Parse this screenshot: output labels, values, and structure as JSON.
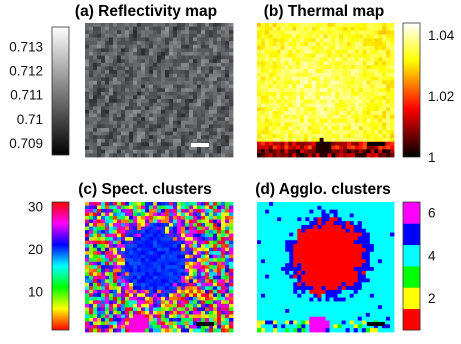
{
  "chart_data": [
    {
      "type": "heatmap",
      "title": "(a) Reflectivity map",
      "colormap": "gray",
      "colorbar": {
        "position": "left",
        "range": [
          0.7085,
          0.7138
        ],
        "ticks": [
          "0.713",
          "0.712",
          "0.711",
          "0.71",
          "0.709"
        ],
        "tick_values": [
          0.713,
          0.712,
          0.711,
          0.71,
          0.709
        ]
      },
      "scalebar_color": "#ffffff"
    },
    {
      "type": "heatmap",
      "title": "(b) Thermal map",
      "colormap": "hot",
      "colorbar": {
        "position": "right",
        "range": [
          1.0,
          1.044
        ],
        "ticks": [
          "1.04",
          "1.02",
          "1"
        ],
        "tick_values": [
          1.04,
          1.02,
          1.0
        ]
      },
      "scalebar_color": "#000000"
    },
    {
      "type": "heatmap",
      "title": "(c) Spect. clusters",
      "colormap": "hsv",
      "colorbar": {
        "position": "left",
        "range": [
          1,
          31
        ],
        "ticks": [
          "30",
          "20",
          "10"
        ],
        "tick_values": [
          30,
          20,
          10
        ]
      },
      "scalebar_color": "#000000"
    },
    {
      "type": "heatmap",
      "title": "(d) Agglo. clusters",
      "colormap": "discrete",
      "colorbar": {
        "position": "right",
        "range": [
          0.5,
          6.5
        ],
        "ticks": [
          "6",
          "4",
          "2"
        ],
        "tick_values": [
          6,
          4,
          2
        ],
        "levels": [
          "#ff0000",
          "#ffff00",
          "#00ff00",
          "#00ffff",
          "#0000ff",
          "#ff00ff"
        ]
      },
      "scalebar_color": "#000000"
    }
  ]
}
